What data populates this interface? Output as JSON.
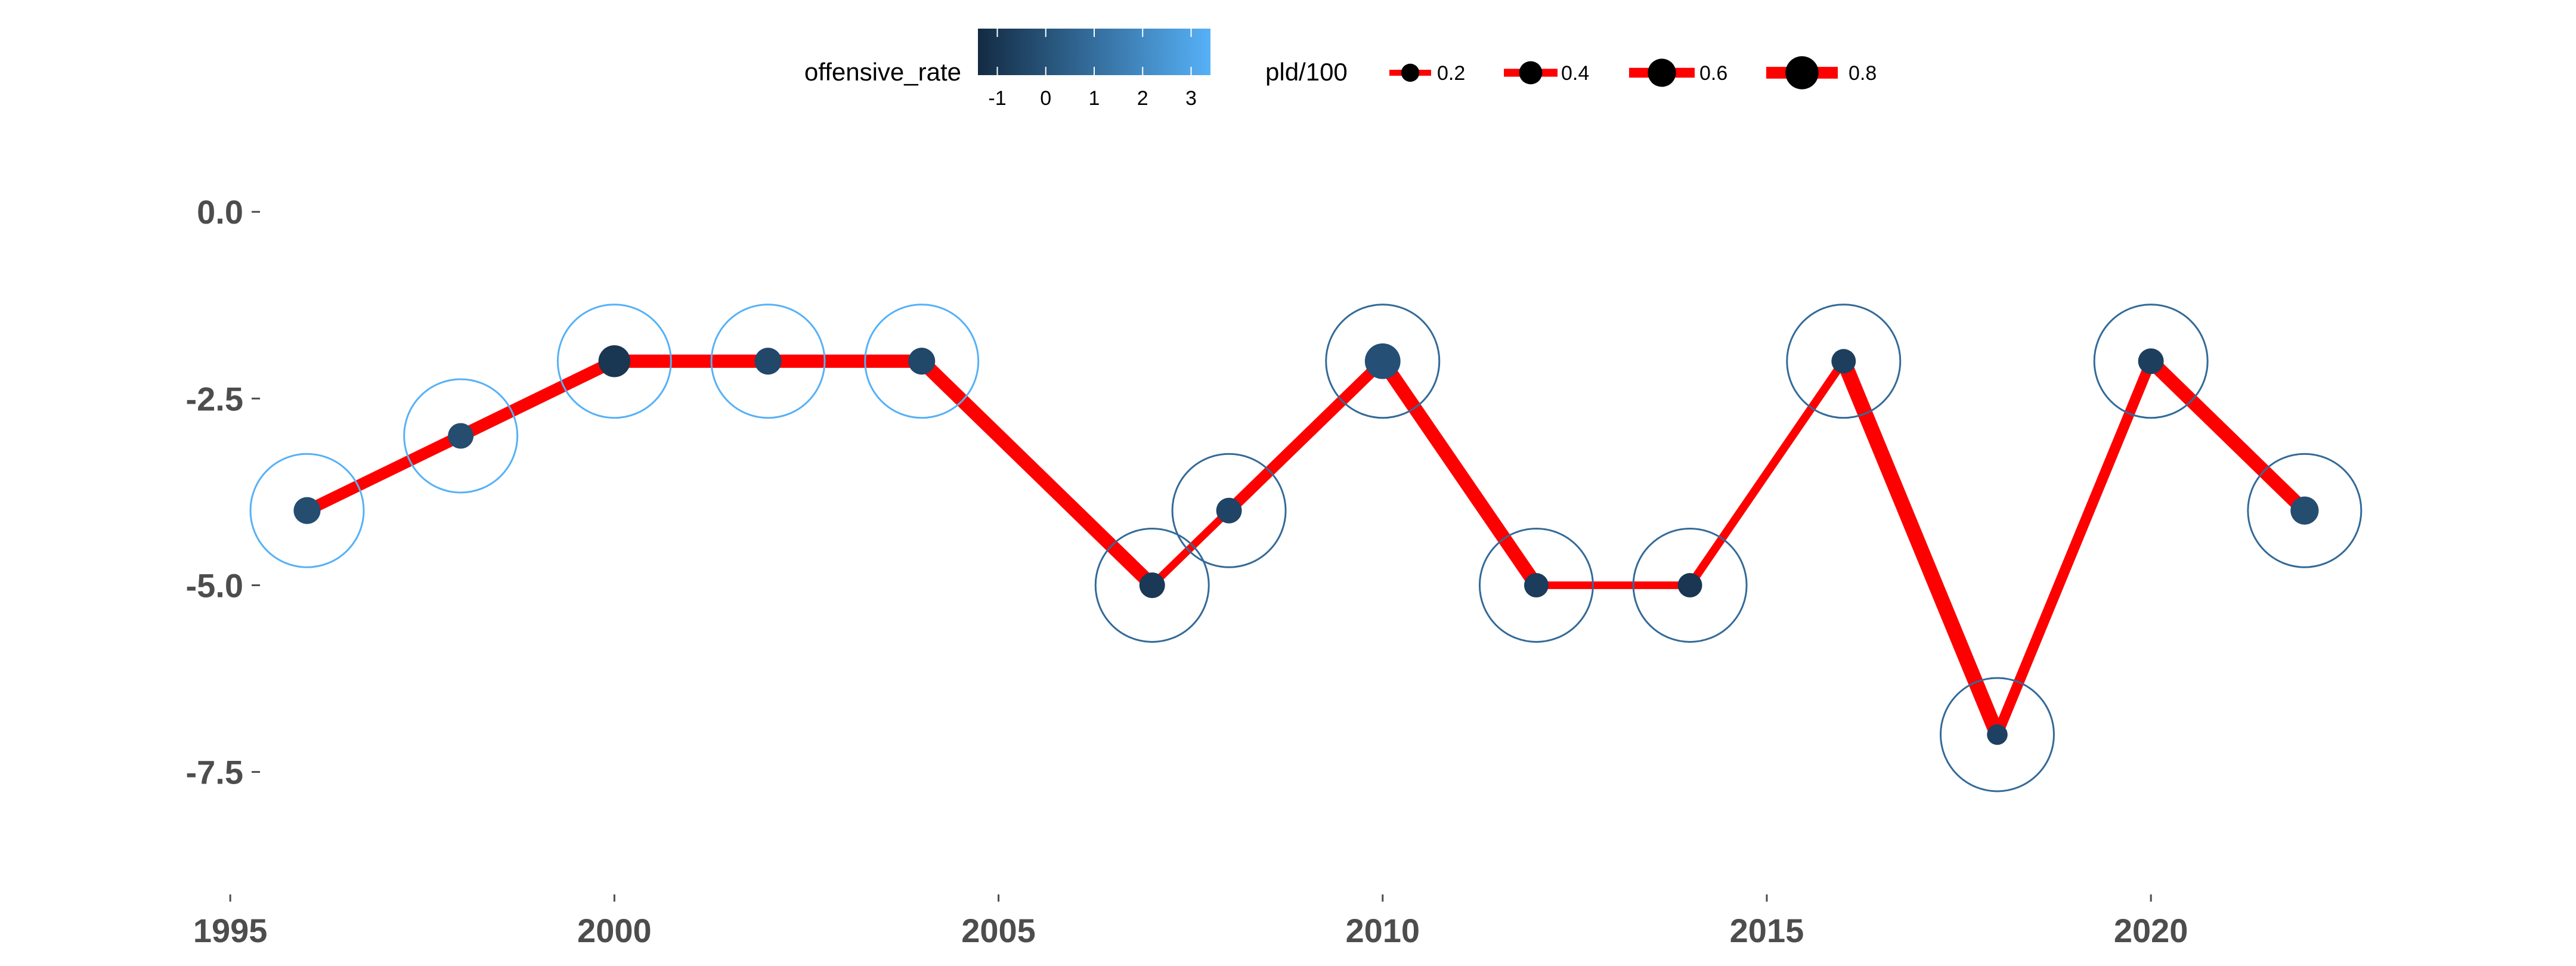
{
  "chart_data": {
    "type": "line",
    "title": "",
    "xlabel": "",
    "ylabel": "",
    "xlim": [
      1993.4,
      2025.3
    ],
    "ylim": [
      -9.3,
      1.0
    ],
    "x_ticks": [
      1995,
      2000,
      2005,
      2010,
      2015,
      2020
    ],
    "x_tick_labels": [
      "1995",
      "2000",
      "2005",
      "2010",
      "2015",
      "2020"
    ],
    "y_ticks": [
      0,
      -2.5,
      -5,
      -7.5
    ],
    "y_tick_labels": [
      "0.0",
      "-2.5",
      "-5.0",
      "-7.5"
    ],
    "grid": false,
    "legend_position": "top",
    "points": [
      {
        "x": 1996,
        "y": -4,
        "offensive_rate": -0.2,
        "pld": 0.55
      },
      {
        "x": 1998,
        "y": -3,
        "offensive_rate": -0.2,
        "pld": 0.5
      },
      {
        "x": 2000,
        "y": -2,
        "offensive_rate": -1.0,
        "pld": 0.75
      },
      {
        "x": 2002,
        "y": -2,
        "offensive_rate": -0.4,
        "pld": 0.55
      },
      {
        "x": 2004,
        "y": -2,
        "offensive_rate": -0.4,
        "pld": 0.55
      },
      {
        "x": 2007,
        "y": -5,
        "offensive_rate": -0.9,
        "pld": 0.5
      },
      {
        "x": 2008,
        "y": -4,
        "offensive_rate": -0.5,
        "pld": 0.5
      },
      {
        "x": 2010,
        "y": -2,
        "offensive_rate": -0.1,
        "pld": 0.9
      },
      {
        "x": 2012,
        "y": -5,
        "offensive_rate": -0.8,
        "pld": 0.45
      },
      {
        "x": 2014,
        "y": -5,
        "offensive_rate": -1.0,
        "pld": 0.45
      },
      {
        "x": 2016,
        "y": -2,
        "offensive_rate": -0.7,
        "pld": 0.45
      },
      {
        "x": 2018,
        "y": -7,
        "offensive_rate": -0.6,
        "pld": 0.3
      },
      {
        "x": 2020,
        "y": -2,
        "offensive_rate": -0.7,
        "pld": 0.5
      },
      {
        "x": 2022,
        "y": -4,
        "offensive_rate": -0.2,
        "pld": 0.6
      }
    ],
    "segments": [
      {
        "from": 1996,
        "to": 1998,
        "pld": 0.6
      },
      {
        "from": 1998,
        "to": 2000,
        "pld": 0.65
      },
      {
        "from": 2000,
        "to": 2002,
        "pld": 0.75
      },
      {
        "from": 2002,
        "to": 2004,
        "pld": 0.75
      },
      {
        "from": 2004,
        "to": 2007,
        "pld": 0.8
      },
      {
        "from": 2007,
        "to": 2008,
        "pld": 0.25
      },
      {
        "from": 2008,
        "to": 2010,
        "pld": 0.55
      },
      {
        "from": 2010,
        "to": 2012,
        "pld": 0.8
      },
      {
        "from": 2012,
        "to": 2014,
        "pld": 0.25
      },
      {
        "from": 2014,
        "to": 2016,
        "pld": 0.3
      },
      {
        "from": 2016,
        "to": 2018,
        "pld": 0.9
      },
      {
        "from": 2018,
        "to": 2020,
        "pld": 0.5
      },
      {
        "from": 2020,
        "to": 2022,
        "pld": 0.8
      }
    ],
    "ring_colors": {
      "1996": "#56B1F7",
      "1998": "#56B1F7",
      "2000": "#56B1F7",
      "2002": "#56B1F7",
      "2004": "#56B1F7",
      "2007": "#336A98",
      "2008": "#336A98",
      "2010": "#336A98",
      "2012": "#336A98",
      "2014": "#336A98",
      "2016": "#336A98",
      "2018": "#336A98",
      "2020": "#336A98",
      "2022": "#336A98"
    },
    "colors": {
      "line": "#FF0000",
      "gradient_low": "#132B43",
      "gradient_high": "#56B1F7",
      "axis_text": "#4d4d4d"
    },
    "legend": {
      "color": {
        "title": "offensive_rate",
        "breaks": [
          -1,
          0,
          1,
          2,
          3
        ],
        "labels": [
          "-1",
          "0",
          "1",
          "2",
          "3"
        ],
        "range": [
          -1.4,
          3.4
        ]
      },
      "size": {
        "title": "pld/100",
        "breaks": [
          0.2,
          0.4,
          0.6,
          0.8
        ],
        "labels": [
          "0.2",
          "0.4",
          "0.6",
          "0.8"
        ]
      }
    }
  }
}
